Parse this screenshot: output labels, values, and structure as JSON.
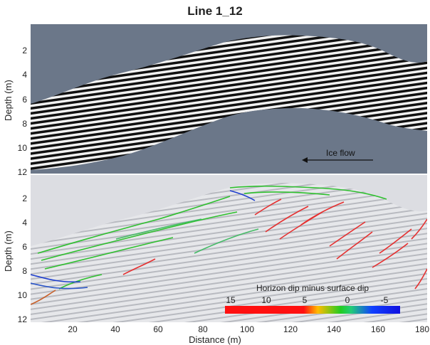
{
  "title": "Line 1_12",
  "top_axis": {
    "ylabel": "Depth (m)",
    "yticks": [
      "2",
      "4",
      "6",
      "8",
      "10",
      "12"
    ]
  },
  "bottom_axis": {
    "ylabel": "Depth (m)",
    "yticks": [
      "2",
      "4",
      "6",
      "8",
      "10",
      "12"
    ]
  },
  "xaxis": {
    "label": "Distance (m)",
    "ticks": [
      "20",
      "40",
      "60",
      "80",
      "100",
      "120",
      "140",
      "160",
      "180"
    ]
  },
  "annotation": {
    "text": "Ice flow"
  },
  "legend": {
    "title": "Horizon dip minus surface dip",
    "ticks": [
      "15",
      "10",
      "5",
      "0",
      "-5"
    ]
  },
  "colors": {
    "top_background": "#6b7789",
    "bottom_background": "#dcdde2",
    "dip_high": "#ff1010",
    "dip_mid": "#22cc22",
    "dip_low": "#1010e0"
  }
}
